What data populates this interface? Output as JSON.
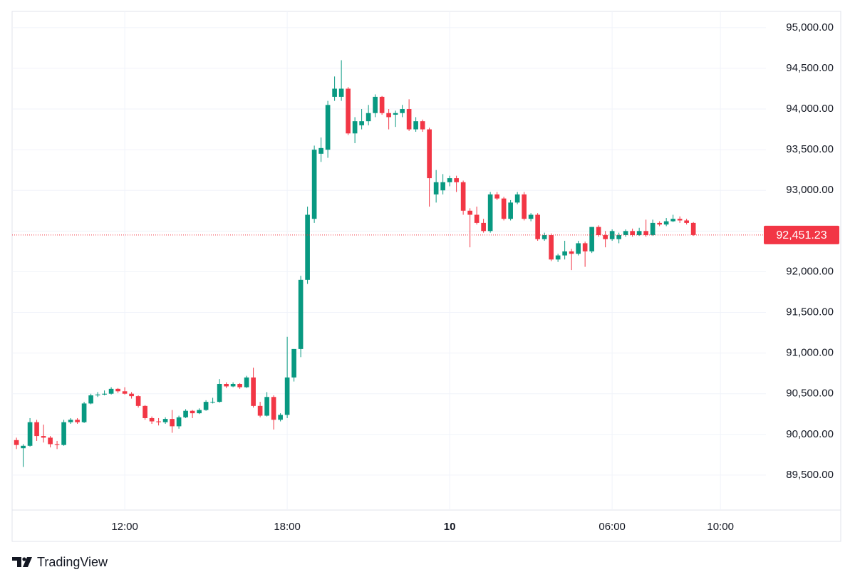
{
  "chart_data": {
    "type": "candlestick",
    "x": [
      8,
      8.25,
      8.5,
      8.75,
      9,
      9.25,
      9.5,
      9.75,
      10,
      10.25,
      10.5,
      10.75,
      11,
      11.25,
      11.5,
      11.75,
      12,
      12.25,
      12.5,
      12.75,
      13,
      13.25,
      13.5,
      13.75,
      14,
      14.25,
      14.5,
      14.75,
      15,
      15.25,
      15.5,
      15.75,
      16,
      16.25,
      16.5,
      16.75,
      17,
      17.25,
      17.5,
      17.75,
      18,
      18.25,
      18.5,
      18.75,
      19,
      19.25,
      19.5,
      19.75,
      20,
      20.25,
      20.5,
      20.75,
      21,
      21.25,
      21.5,
      21.75,
      22,
      22.25,
      22.5,
      22.75,
      23,
      23.25,
      23.5,
      23.75,
      24,
      24.25,
      24.5,
      24.75,
      25,
      25.25,
      25.5,
      25.75,
      26,
      26.25,
      26.5,
      26.75,
      27,
      27.25,
      27.5,
      27.75,
      28,
      28.25,
      28.5,
      28.75,
      29,
      29.25,
      29.5,
      29.75,
      30,
      30.25,
      30.5,
      30.75,
      31,
      31.25,
      31.5,
      31.75,
      32,
      32.25,
      32.5,
      32.75,
      33
    ],
    "open": [
      89930,
      89830,
      89860,
      90150,
      89980,
      89960,
      89880,
      89870,
      90150,
      90180,
      90150,
      90380,
      90480,
      90490,
      90500,
      90560,
      90530,
      90500,
      90470,
      90350,
      90200,
      90160,
      90150,
      90190,
      90100,
      90210,
      90290,
      90260,
      90300,
      90400,
      90400,
      90620,
      90590,
      90620,
      90580,
      90700,
      90350,
      90230,
      90460,
      90180,
      90240,
      90700,
      91050,
      91900,
      92650,
      93450,
      93500,
      94150,
      94150,
      94250,
      93700,
      93800,
      93850,
      93950,
      94150,
      93950,
      93930,
      93950,
      94000,
      93750,
      93850,
      93750,
      92950,
      93000,
      93100,
      93150,
      93100,
      92750,
      92700,
      92600,
      92500,
      92950,
      92900,
      92650,
      92850,
      92950,
      92650,
      92700,
      92400,
      92450,
      92150,
      92200,
      92250,
      92220,
      92350,
      92250,
      92550,
      92450,
      92400,
      92400,
      92450,
      92500,
      92450,
      92500,
      92450,
      92600,
      92580,
      92620,
      92650,
      92630,
      92600
    ],
    "high": [
      89960,
      89880,
      90200,
      90180,
      90120,
      89980,
      89920,
      90180,
      90200,
      90200,
      90400,
      90500,
      90520,
      90540,
      90580,
      90570,
      90580,
      90520,
      90480,
      90360,
      90220,
      90200,
      90210,
      90300,
      90230,
      90310,
      90300,
      90320,
      90420,
      90450,
      90680,
      90640,
      90640,
      90630,
      90720,
      90820,
      90400,
      90520,
      90480,
      90260,
      91200,
      91050,
      91950,
      92800,
      93550,
      93650,
      94100,
      94400,
      94600,
      94270,
      93900,
      94000,
      94050,
      94180,
      94160,
      94000,
      93980,
      94050,
      94120,
      93900,
      93870,
      93770,
      93250,
      93200,
      93180,
      93180,
      93120,
      92780,
      92800,
      92650,
      92980,
      92980,
      92920,
      92880,
      92980,
      92980,
      92720,
      92720,
      92480,
      92470,
      92220,
      92380,
      92280,
      92380,
      92370,
      92550,
      92570,
      92500,
      92520,
      92480,
      92520,
      92530,
      92540,
      92640,
      92640,
      92620,
      92660,
      92700,
      92680,
      92650,
      92610
    ],
    "low": [
      89820,
      89600,
      89850,
      89920,
      89900,
      89840,
      89820,
      89860,
      90130,
      90130,
      90140,
      90370,
      90460,
      90480,
      90490,
      90510,
      90490,
      90440,
      90330,
      90180,
      90130,
      90110,
      90130,
      90020,
      90070,
      90200,
      90200,
      90250,
      90290,
      90380,
      90390,
      90570,
      90580,
      90560,
      90570,
      90330,
      90210,
      90220,
      90060,
      90160,
      90200,
      90650,
      90950,
      91850,
      92600,
      93350,
      93400,
      94100,
      94100,
      93680,
      93580,
      93750,
      93800,
      93900,
      93930,
      93750,
      93780,
      93900,
      93730,
      93720,
      93720,
      92800,
      92850,
      92950,
      93050,
      92980,
      92700,
      92300,
      92580,
      92480,
      92480,
      92880,
      92630,
      92630,
      92830,
      92630,
      92620,
      92380,
      92380,
      92130,
      92120,
      92150,
      92020,
      92200,
      92060,
      92230,
      92430,
      92300,
      92380,
      92350,
      92430,
      92430,
      92440,
      92430,
      92440,
      92560,
      92560,
      92610,
      92600,
      92580,
      92440
    ],
    "close": [
      89870,
      89860,
      90150,
      89980,
      89960,
      89880,
      89870,
      90150,
      90180,
      90150,
      90380,
      90480,
      90490,
      90500,
      90560,
      90530,
      90500,
      90470,
      90350,
      90200,
      90160,
      90150,
      90190,
      90100,
      90210,
      90290,
      90260,
      90300,
      90400,
      90400,
      90620,
      90590,
      90620,
      90580,
      90700,
      90350,
      90230,
      90460,
      90180,
      90240,
      90700,
      91050,
      91900,
      92700,
      93500,
      93520,
      94050,
      94250,
      94250,
      93700,
      93850,
      93850,
      93950,
      94150,
      93950,
      93900,
      93950,
      94000,
      93750,
      93850,
      93750,
      93150,
      93100,
      93100,
      93150,
      93100,
      92750,
      92700,
      92600,
      92500,
      92950,
      92900,
      92650,
      92850,
      92950,
      92650,
      92700,
      92400,
      92450,
      92150,
      92200,
      92250,
      92220,
      92350,
      92250,
      92550,
      92450,
      92400,
      92500,
      92450,
      92500,
      92450,
      92500,
      92450,
      92600,
      92580,
      92620,
      92650,
      92630,
      92600,
      92451.23
    ],
    "up_color": "#089981",
    "down_color": "#f23645",
    "xlim": [
      7.84,
      35.68
    ],
    "ylim": [
      89070,
      95200
    ],
    "yticks": [
      {
        "value": 89500,
        "label": "89,500.00"
      },
      {
        "value": 90000,
        "label": "90,000.00"
      },
      {
        "value": 90500,
        "label": "90,500.00"
      },
      {
        "value": 91000,
        "label": "91,000.00"
      },
      {
        "value": 91500,
        "label": "91,500.00"
      },
      {
        "value": 92000,
        "label": "92,000.00"
      },
      {
        "value": 92500,
        "label": "92,500.00"
      },
      {
        "value": 93000,
        "label": "93,000.00"
      },
      {
        "value": 93500,
        "label": "93,500.00"
      },
      {
        "value": 94000,
        "label": "94,000.00"
      },
      {
        "value": 94500,
        "label": "94,500.00"
      },
      {
        "value": 95000,
        "label": "95,000.00"
      }
    ],
    "xticks": [
      {
        "value": 12,
        "label": "12:00"
      },
      {
        "value": 18,
        "label": "18:00"
      },
      {
        "value": 24,
        "label": "10"
      },
      {
        "value": 30,
        "label": "06:00"
      },
      {
        "value": 34,
        "label": "10:00"
      }
    ],
    "last_price": {
      "value": 92451.23,
      "label": "92,451.23",
      "color": "#f23645"
    },
    "grid": true
  },
  "branding": "TradingView"
}
